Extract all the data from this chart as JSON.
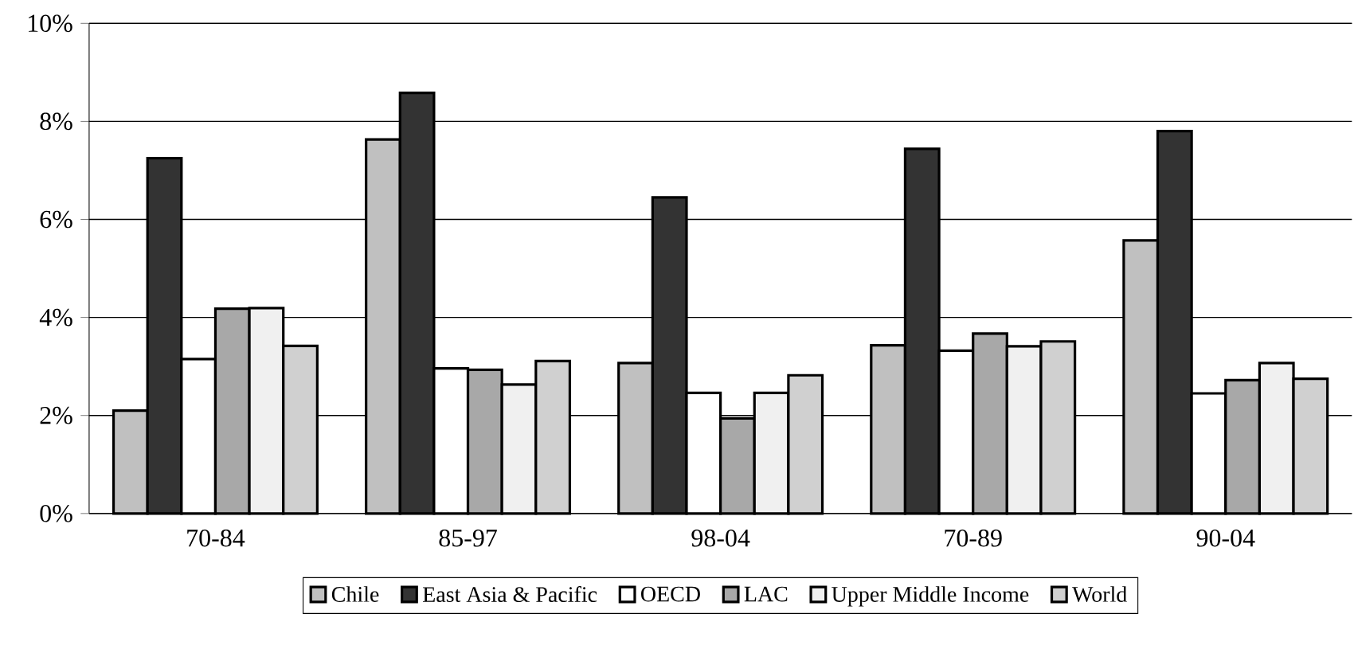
{
  "chart_data": {
    "type": "bar",
    "categories": [
      "70-84",
      "85-97",
      "98-04",
      "70-89",
      "90-04"
    ],
    "series": [
      {
        "name": "Chile",
        "color": "#c0c0c0",
        "values": [
          2.1,
          7.63,
          3.07,
          3.43,
          5.57
        ]
      },
      {
        "name": "East Asia & Pacific",
        "color": "#333333",
        "values": [
          7.25,
          8.58,
          6.45,
          7.44,
          7.8
        ]
      },
      {
        "name": "OECD",
        "color": "#ffffff",
        "values": [
          3.15,
          2.96,
          2.46,
          3.32,
          2.45
        ]
      },
      {
        "name": "LAC",
        "color": "#a8a8a8",
        "values": [
          4.18,
          2.93,
          1.94,
          3.67,
          2.72
        ]
      },
      {
        "name": "Upper Middle Income",
        "color": "#f0f0f0",
        "values": [
          4.19,
          2.63,
          2.46,
          3.41,
          3.07
        ]
      },
      {
        "name": "World",
        "color": "#d0d0d0",
        "values": [
          3.42,
          3.11,
          2.82,
          3.51,
          2.75
        ]
      }
    ],
    "ylim": [
      0,
      10
    ],
    "yticks": [
      {
        "value": 0,
        "label": "0%"
      },
      {
        "value": 2,
        "label": "2%"
      },
      {
        "value": 4,
        "label": "4%"
      },
      {
        "value": 6,
        "label": "6%"
      },
      {
        "value": 8,
        "label": "8%"
      },
      {
        "value": 10,
        "label": "10%"
      }
    ],
    "grid": "y",
    "legend": "bottom"
  }
}
